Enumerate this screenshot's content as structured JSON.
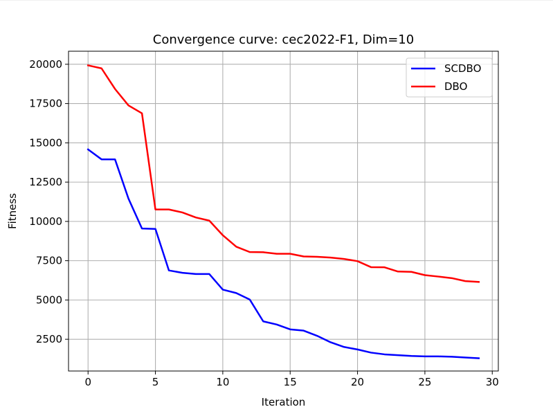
{
  "chart_data": {
    "type": "line",
    "title": "Convergence curve:  cec2022-F1, Dim=10",
    "xlabel": "Iteration",
    "ylabel": "Fitness",
    "xlim": [
      -1.45,
      30.45
    ],
    "ylim": [
      480,
      20830
    ],
    "xticks": [
      0,
      5,
      10,
      15,
      20,
      25,
      30
    ],
    "yticks": [
      2500,
      5000,
      7500,
      10000,
      12500,
      15000,
      17500,
      20000
    ],
    "xtick_labels": [
      "0",
      "5",
      "10",
      "15",
      "20",
      "25",
      "30"
    ],
    "ytick_labels": [
      "2500",
      "5000",
      "7500",
      "10000",
      "12500",
      "15000",
      "17500",
      "20000"
    ],
    "grid": true,
    "legend_position": "upper right",
    "x": [
      0,
      1,
      2,
      3,
      4,
      5,
      6,
      7,
      8,
      9,
      10,
      11,
      12,
      13,
      14,
      15,
      16,
      17,
      18,
      19,
      20,
      21,
      22,
      23,
      24,
      25,
      26,
      27,
      28,
      29
    ],
    "series": [
      {
        "name": "SCDBO",
        "color": "#0000ff",
        "values": [
          14580,
          13950,
          13950,
          11450,
          9550,
          9520,
          6880,
          6730,
          6650,
          6650,
          5660,
          5440,
          5030,
          3640,
          3440,
          3130,
          3050,
          2720,
          2310,
          2010,
          1850,
          1650,
          1540,
          1490,
          1440,
          1410,
          1410,
          1390,
          1340,
          1290
        ]
      },
      {
        "name": "DBO",
        "color": "#ff0000",
        "values": [
          19930,
          19740,
          18430,
          17380,
          16880,
          10760,
          10760,
          10570,
          10250,
          10050,
          9120,
          8390,
          8050,
          8040,
          7940,
          7940,
          7770,
          7750,
          7700,
          7610,
          7470,
          7090,
          7080,
          6810,
          6790,
          6580,
          6490,
          6390,
          6200,
          6150
        ]
      }
    ]
  }
}
